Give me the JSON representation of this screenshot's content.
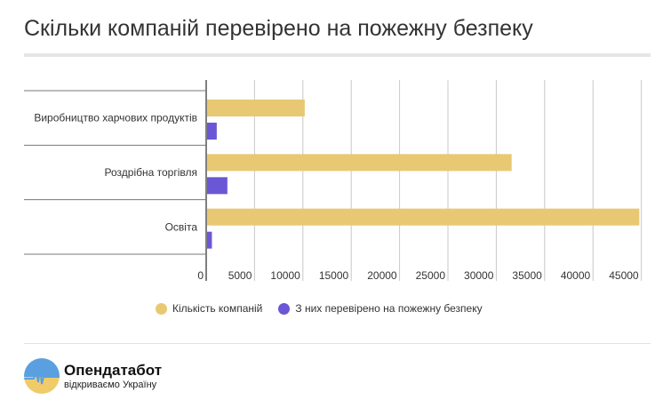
{
  "title": "Скільки компаній перевірено на пожежну безпеку",
  "chart_data": {
    "type": "bar",
    "orientation": "horizontal",
    "title": "Скільки компаній перевірено на пожежну безпеку",
    "categories": [
      "Виробництво харчових продуктів",
      "Роздрібна торгівля",
      "Освіта"
    ],
    "series": [
      {
        "name": "Кількість компаній",
        "color": "#E8C872",
        "values": [
          10100,
          31500,
          44700
        ]
      },
      {
        "name": "З них перевірено на пожежну безпеку",
        "color": "#6A57D6",
        "values": [
          1000,
          2100,
          500
        ]
      }
    ],
    "xticks": [
      "0",
      "5000",
      "10000",
      "15000",
      "20000",
      "25000",
      "30000",
      "35000",
      "40000",
      "45000"
    ],
    "xtick_values": [
      0,
      5000,
      10000,
      15000,
      20000,
      25000,
      30000,
      35000,
      40000,
      45000
    ],
    "xlim": [
      0,
      45000
    ],
    "grid": true,
    "legend": "bottom"
  },
  "logo": {
    "name": "Опендатабот",
    "tagline": "відкриваємо Україну"
  }
}
